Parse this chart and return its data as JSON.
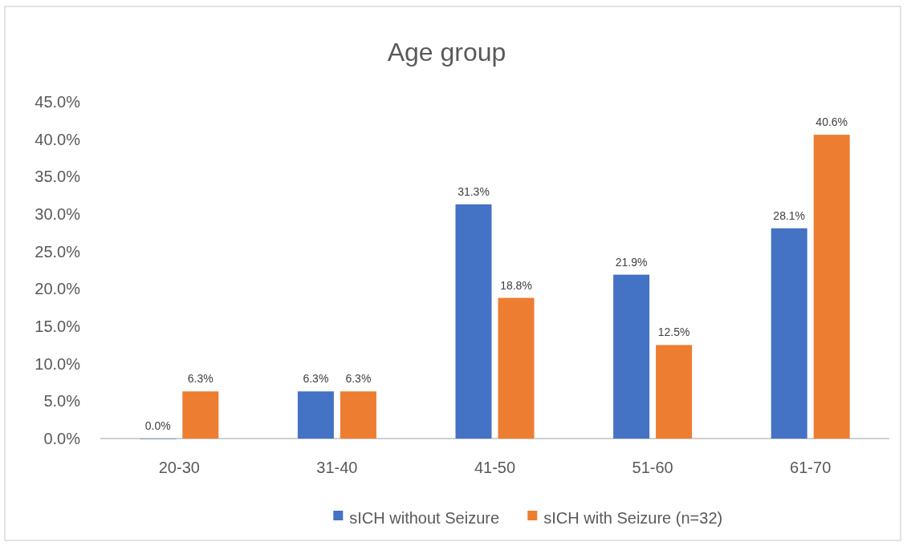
{
  "chart_data": {
    "type": "bar",
    "title": "Age group",
    "categories": [
      "20-30",
      "31-40",
      "41-50",
      "51-60",
      "61-70"
    ],
    "series": [
      {
        "name": "sICH without Seizure",
        "color": "#4472c4",
        "values": [
          0.0,
          6.3,
          31.3,
          21.9,
          28.1
        ],
        "value_labels": [
          "0.0%",
          "6.3%",
          "31.3%",
          "21.9%",
          "28.1%"
        ]
      },
      {
        "name": "sICH with Seizure (n=32)",
        "color": "#ed7d31",
        "values": [
          6.3,
          6.3,
          18.8,
          12.5,
          40.6
        ],
        "value_labels": [
          "6.3%",
          "6.3%",
          "18.8%",
          "12.5%",
          "40.6%"
        ]
      }
    ],
    "ylim": [
      0,
      45
    ],
    "yticks": [
      {
        "value": 0,
        "label": "0.0%"
      },
      {
        "value": 5,
        "label": "5.0%"
      },
      {
        "value": 10,
        "label": "10.0%"
      },
      {
        "value": 15,
        "label": "15.0%"
      },
      {
        "value": 20,
        "label": "20.0%"
      },
      {
        "value": 25,
        "label": "25.0%"
      },
      {
        "value": 30,
        "label": "30.0%"
      },
      {
        "value": 35,
        "label": "35.0%"
      },
      {
        "value": 40,
        "label": "40.0%"
      },
      {
        "value": 45,
        "label": "45.0%"
      }
    ],
    "grid": false,
    "legend": "bottom"
  }
}
